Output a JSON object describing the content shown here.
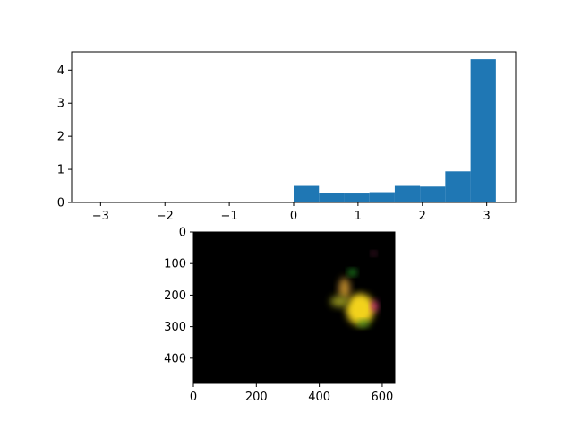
{
  "chart_data": [
    {
      "type": "bar",
      "title": "",
      "xlabel": "",
      "ylabel": "",
      "xlim": [
        -3.45,
        3.45
      ],
      "ylim": [
        0,
        4.55
      ],
      "xticks": [
        -3,
        -2,
        -1,
        0,
        1,
        2,
        3
      ],
      "yticks": [
        0,
        1,
        2,
        3,
        4
      ],
      "xtick_labels": [
        "−3",
        "−2",
        "−1",
        "0",
        "1",
        "2",
        "3"
      ],
      "ytick_labels": [
        "0",
        "1",
        "2",
        "3",
        "4"
      ],
      "bin_edges": [
        0.0,
        0.393,
        0.785,
        1.178,
        1.571,
        1.963,
        2.356,
        2.749,
        3.142
      ],
      "values": [
        0.5,
        0.29,
        0.27,
        0.31,
        0.5,
        0.48,
        0.94,
        4.33
      ],
      "bar_color": "#1f77b4",
      "grid": false,
      "legend": "none"
    },
    {
      "type": "heatmap",
      "title": "",
      "xlabel": "",
      "ylabel": "",
      "xlim": [
        0,
        640
      ],
      "ylim": [
        480,
        0
      ],
      "xticks": [
        0,
        200,
        400,
        600
      ],
      "yticks": [
        0,
        100,
        200,
        300,
        400
      ],
      "xtick_labels": [
        "0",
        "200",
        "400",
        "600"
      ],
      "ytick_labels": [
        "0",
        "100",
        "200",
        "300",
        "400"
      ],
      "background_color": "#000000",
      "features": [
        {
          "name": "bright-yellow-core",
          "color": "#f2d21a",
          "x": 530,
          "y": 245,
          "rx": 45,
          "ry": 50
        },
        {
          "name": "orange-streak",
          "color": "#b8862a",
          "x": 480,
          "y": 180,
          "rx": 18,
          "ry": 35
        },
        {
          "name": "olive-arm",
          "color": "#8a8a1a",
          "x": 465,
          "y": 220,
          "rx": 30,
          "ry": 18
        },
        {
          "name": "green-patch",
          "color": "#2ecc2e",
          "x": 505,
          "y": 128,
          "rx": 12,
          "ry": 9
        },
        {
          "name": "magenta-patch",
          "color": "#e0208a",
          "x": 575,
          "y": 235,
          "rx": 10,
          "ry": 16
        },
        {
          "name": "magenta-dot",
          "color": "#b0306a",
          "x": 573,
          "y": 68,
          "rx": 7,
          "ry": 6
        },
        {
          "name": "green-tail",
          "color": "#3a8a1a",
          "x": 540,
          "y": 290,
          "rx": 20,
          "ry": 10
        }
      ]
    }
  ]
}
